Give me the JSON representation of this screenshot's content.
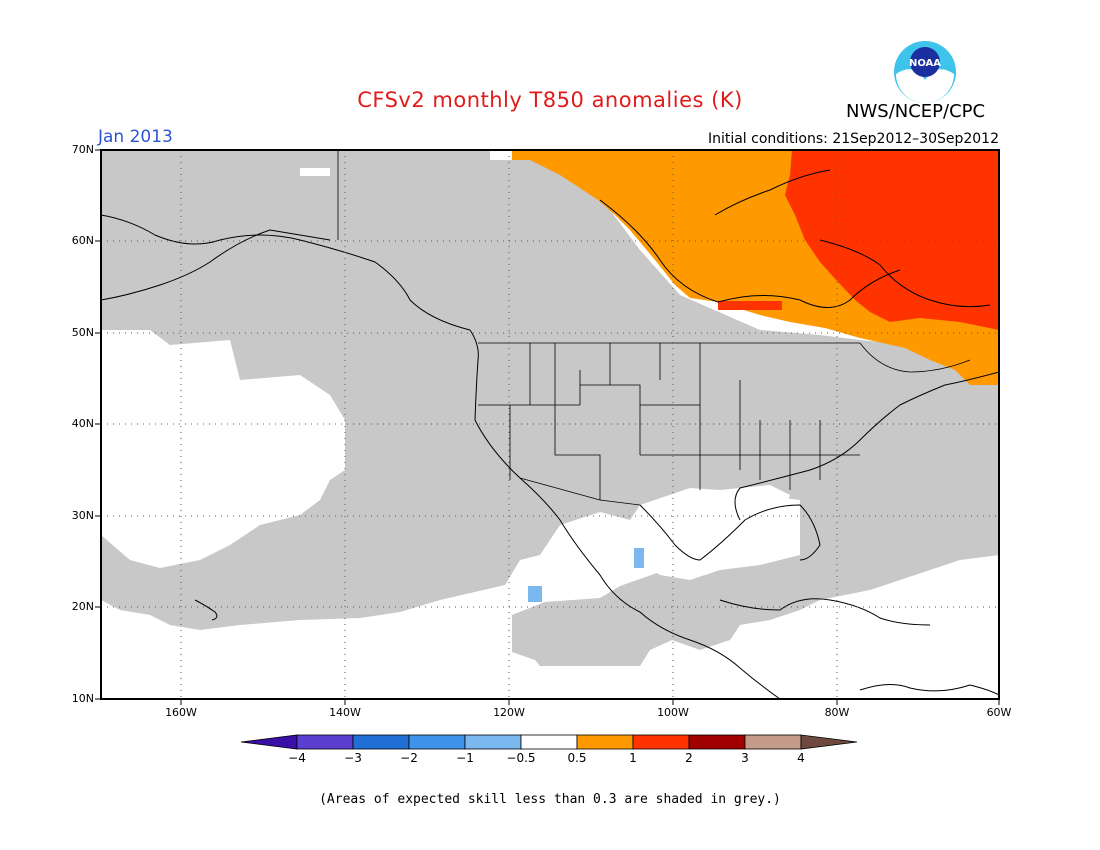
{
  "header": {
    "title": "CFSv2 monthly T850 anomalies (K)",
    "agency": "NWS/NCEP/CPC",
    "logo_text": "NOAA",
    "period": "Jan 2013",
    "initial_conditions": "Initial conditions: 21Sep2012–30Sep2012"
  },
  "map": {
    "projection": "equirectangular",
    "lon_range": [
      -172,
      -60
    ],
    "lat_range": [
      10,
      70
    ],
    "lat_labels": [
      "70N",
      "60N",
      "50N",
      "40N",
      "30N",
      "20N",
      "10N"
    ],
    "lon_labels": [
      "160W",
      "140W",
      "120W",
      "100W",
      "80W",
      "60W"
    ],
    "grid": "dotted",
    "low_skill_shading": "grey",
    "anomaly_regions": [
      {
        "name": "northeast Canada warm anomaly",
        "category": "1 to 2",
        "color": "#ff3300"
      },
      {
        "name": "northern Canada warm anomaly",
        "category": "0.5 to 1",
        "color": "#ff9900"
      },
      {
        "name": "Mexico cool anomaly",
        "category": "-1 to -0.5",
        "color": "#7ab8ef"
      }
    ]
  },
  "colorbar": {
    "labels": [
      "−4",
      "−3",
      "−2",
      "−1",
      "−0.5",
      "0.5",
      "1",
      "2",
      "3",
      "4"
    ],
    "colors": [
      "#3a0fa8",
      "#5a3fd0",
      "#1f6fd6",
      "#3f93ea",
      "#7ab8ef",
      "#ffffff",
      "#ff9900",
      "#ff3300",
      "#a00000",
      "#c49a88",
      "#6e4a3e"
    ]
  },
  "footnote": "(Areas of expected skill less than 0.3 are shaded in grey.)"
}
